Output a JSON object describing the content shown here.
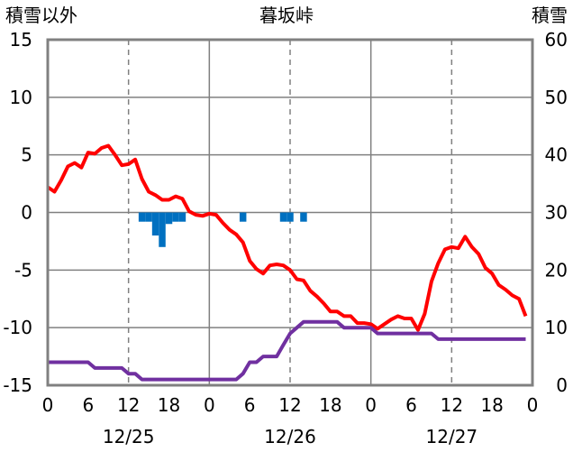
{
  "chart_data": {
    "type": "line",
    "title": "暮坂峠",
    "left_axis_label": "積雪以外",
    "right_axis_label": "積雪",
    "y_left": {
      "min": -15,
      "max": 15,
      "ticks": [
        15,
        10,
        5,
        0,
        -5,
        -10,
        -15
      ]
    },
    "y_right": {
      "min": 0,
      "max": 60,
      "ticks": [
        60,
        50,
        40,
        30,
        20,
        10,
        0
      ]
    },
    "x": {
      "min": 0,
      "max": 72,
      "hours_per_tick": 6
    },
    "x_tick_labels": [
      "0",
      "6",
      "12",
      "18",
      "0",
      "6",
      "12",
      "18",
      "0",
      "6",
      "12",
      "18",
      "0"
    ],
    "date_labels": [
      {
        "text": "12/25",
        "hour": 12
      },
      {
        "text": "12/26",
        "hour": 36
      },
      {
        "text": "12/27",
        "hour": 60
      }
    ],
    "day_lines_hours": [
      24,
      48
    ],
    "grid_dashed_hours": [
      12,
      36,
      60
    ],
    "grid": true,
    "series": [
      {
        "axis": "left",
        "kind": "line",
        "color": "#ff0000",
        "points": [
          [
            0,
            2.2
          ],
          [
            1,
            1.8
          ],
          [
            2,
            2.8
          ],
          [
            3,
            4
          ],
          [
            4,
            4.3
          ],
          [
            5,
            3.9
          ],
          [
            6,
            5.2
          ],
          [
            7,
            5.1
          ],
          [
            8,
            5.6
          ],
          [
            9,
            5.8
          ],
          [
            10,
            5
          ],
          [
            11,
            4.1
          ],
          [
            12,
            4.2
          ],
          [
            13,
            4.6
          ],
          [
            14,
            2.9
          ],
          [
            15,
            1.8
          ],
          [
            16,
            1.5
          ],
          [
            17,
            1.1
          ],
          [
            18,
            1.1
          ],
          [
            19,
            1.4
          ],
          [
            20,
            1.2
          ],
          [
            21,
            0.1
          ],
          [
            22,
            -0.2
          ],
          [
            23,
            -0.3
          ],
          [
            24,
            -0.1
          ],
          [
            25,
            -0.2
          ],
          [
            26,
            -0.9
          ],
          [
            27,
            -1.5
          ],
          [
            28,
            -1.9
          ],
          [
            29,
            -2.6
          ],
          [
            30,
            -4.2
          ],
          [
            31,
            -4.9
          ],
          [
            32,
            -5.3
          ],
          [
            33,
            -4.6
          ],
          [
            34,
            -4.5
          ],
          [
            35,
            -4.6
          ],
          [
            36,
            -5
          ],
          [
            37,
            -5.8
          ],
          [
            38,
            -5.9
          ],
          [
            39,
            -6.8
          ],
          [
            40,
            -7.3
          ],
          [
            41,
            -7.9
          ],
          [
            42,
            -8.6
          ],
          [
            43,
            -8.6
          ],
          [
            44,
            -9
          ],
          [
            45,
            -9
          ],
          [
            46,
            -9.6
          ],
          [
            47,
            -9.6
          ],
          [
            48,
            -9.7
          ],
          [
            49,
            -10.1
          ],
          [
            50,
            -9.7
          ],
          [
            51,
            -9.3
          ],
          [
            52,
            -9
          ],
          [
            53,
            -9.2
          ],
          [
            54,
            -9.2
          ],
          [
            55,
            -10.2
          ],
          [
            56,
            -8.8
          ],
          [
            57,
            -6
          ],
          [
            58,
            -4.4
          ],
          [
            59,
            -3.2
          ],
          [
            60,
            -3
          ],
          [
            61,
            -3.1
          ],
          [
            62,
            -2.1
          ],
          [
            63,
            -3
          ],
          [
            64,
            -3.6
          ],
          [
            65,
            -4.8
          ],
          [
            66,
            -5.3
          ],
          [
            67,
            -6.3
          ],
          [
            68,
            -6.7
          ],
          [
            69,
            -7.2
          ],
          [
            70,
            -7.5
          ],
          [
            71,
            -9
          ]
        ]
      },
      {
        "axis": "right",
        "kind": "line",
        "color": "#7030a0",
        "points": [
          [
            0,
            4
          ],
          [
            6,
            4
          ],
          [
            7,
            3
          ],
          [
            11,
            3
          ],
          [
            12,
            2
          ],
          [
            13,
            2
          ],
          [
            14,
            1
          ],
          [
            28,
            1
          ],
          [
            29,
            2
          ],
          [
            30,
            4
          ],
          [
            31,
            4
          ],
          [
            32,
            5
          ],
          [
            34,
            5
          ],
          [
            35,
            7
          ],
          [
            36,
            9
          ],
          [
            37,
            10
          ],
          [
            38,
            11
          ],
          [
            43,
            11
          ],
          [
            44,
            10
          ],
          [
            48,
            10
          ],
          [
            49,
            9
          ],
          [
            57,
            9
          ],
          [
            58,
            8
          ],
          [
            71,
            8
          ]
        ]
      },
      {
        "axis": "left",
        "kind": "bar",
        "color": "#0070c0",
        "bars": [
          [
            14,
            -0.8
          ],
          [
            15,
            -0.8
          ],
          [
            16,
            -2
          ],
          [
            17,
            -3
          ],
          [
            18,
            -1
          ],
          [
            19,
            -0.8
          ],
          [
            20,
            -0.8
          ],
          [
            29,
            -0.8
          ],
          [
            35,
            -0.8
          ],
          [
            36,
            -0.8
          ],
          [
            38,
            -0.8
          ]
        ]
      }
    ]
  }
}
